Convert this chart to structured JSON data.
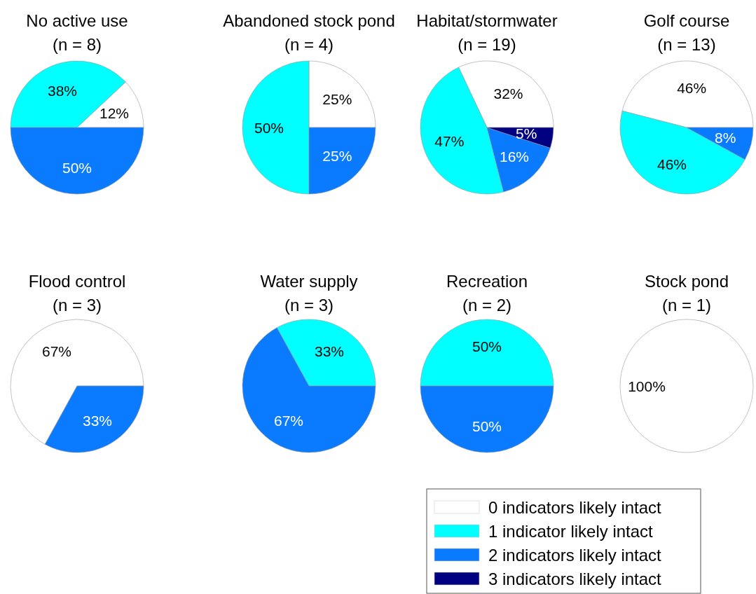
{
  "chart_data": [
    {
      "type": "pie",
      "title": "No active use",
      "subtitle": "(n = 8)",
      "categories": [
        null,
        null,
        null,
        null
      ],
      "values": [
        12,
        38,
        50,
        null
      ],
      "value_labels": [
        "12%",
        "38%",
        "50%",
        null
      ],
      "colors": [
        "#ffffff",
        "#00ffff",
        "#0a7bff",
        "#000080"
      ]
    },
    {
      "type": "pie",
      "title": "Abandoned stock pond",
      "subtitle": "(n = 4)",
      "categories": [
        null,
        null,
        null,
        null
      ],
      "values": [
        25,
        50,
        25,
        null
      ],
      "value_labels": [
        "25%",
        "50%",
        "25%",
        null
      ],
      "colors": [
        "#ffffff",
        "#00ffff",
        "#0a7bff",
        "#000080"
      ]
    },
    {
      "type": "pie",
      "title": "Habitat/stormwater",
      "subtitle": "(n = 19)",
      "categories": [
        null,
        null,
        null,
        null
      ],
      "values": [
        32,
        47,
        16,
        5
      ],
      "value_labels": [
        "32%",
        "47%",
        "16%",
        "5%"
      ],
      "colors": [
        "#ffffff",
        "#00ffff",
        "#0a7bff",
        "#000080"
      ]
    },
    {
      "type": "pie",
      "title": "Golf course",
      "subtitle": "(n = 13)",
      "categories": [
        null,
        null,
        null,
        null
      ],
      "values": [
        46,
        46,
        8,
        null
      ],
      "value_labels": [
        "46%",
        "46%",
        "8%",
        null
      ],
      "colors": [
        "#ffffff",
        "#00ffff",
        "#0a7bff",
        "#000080"
      ]
    },
    {
      "type": "pie",
      "title": "Flood control",
      "subtitle": "(n = 3)",
      "categories": [
        null,
        null,
        null,
        null
      ],
      "values": [
        67,
        null,
        33,
        null
      ],
      "value_labels": [
        "67%",
        null,
        "33%",
        null
      ],
      "colors": [
        "#ffffff",
        "#00ffff",
        "#0a7bff",
        "#000080"
      ]
    },
    {
      "type": "pie",
      "title": "Water supply",
      "subtitle": "(n = 3)",
      "categories": [
        null,
        null,
        null,
        null
      ],
      "values": [
        null,
        33,
        67,
        null
      ],
      "value_labels": [
        null,
        "33%",
        "67%",
        null
      ],
      "colors": [
        "#ffffff",
        "#00ffff",
        "#0a7bff",
        "#000080"
      ]
    },
    {
      "type": "pie",
      "title": "Recreation",
      "subtitle": "(n = 2)",
      "categories": [
        null,
        null,
        null,
        null
      ],
      "values": [
        null,
        50,
        50,
        null
      ],
      "value_labels": [
        null,
        "50%",
        "50%",
        null
      ],
      "colors": [
        "#ffffff",
        "#00ffff",
        "#0a7bff",
        "#000080"
      ]
    },
    {
      "type": "pie",
      "title": "Stock pond",
      "subtitle": "(n = 1)",
      "categories": [
        "0 indicators likely intact",
        "1 indicator likely intact",
        "2 indicators likely intact",
        "3 indicators likely intact"
      ],
      "values": [
        100,
        null,
        null,
        null
      ],
      "value_labels": [
        "100%",
        null,
        null,
        null
      ],
      "colors": [
        "#ffffff",
        "#00ffff",
        "#0a7bff",
        "#000080"
      ],
      "legend": "bottom left"
    }
  ]
}
